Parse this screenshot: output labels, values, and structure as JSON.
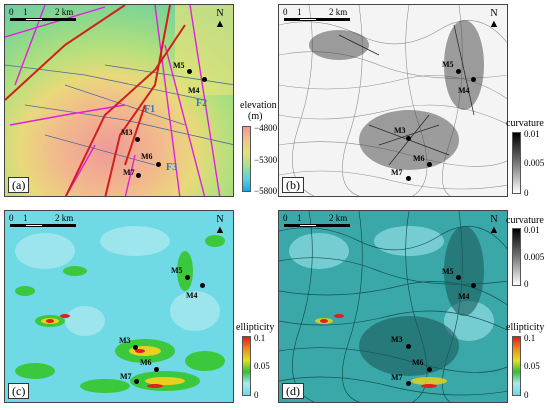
{
  "panels": {
    "a": {
      "label": "(a)"
    },
    "b": {
      "label": "(b)"
    },
    "c": {
      "label": "(c)"
    },
    "d": {
      "label": "(d)"
    }
  },
  "scale": {
    "t0": "0",
    "t1": "1",
    "t2": "2 km"
  },
  "north": "N",
  "wells": {
    "M3": "M3",
    "M4": "M4",
    "M5": "M5",
    "M6": "M6",
    "M7": "M7"
  },
  "faults": {
    "F1": "F1",
    "F2": "F2",
    "F3": "F3"
  },
  "colorbars": {
    "elevation": {
      "title": "elevation",
      "unit": "(m)",
      "ticks": [
        "−4800",
        "−5300",
        "−5800"
      ]
    },
    "curvature_b": {
      "title": "curvature",
      "ticks": [
        "0.01",
        "0.005",
        "0"
      ]
    },
    "ellipticity_c": {
      "title": "ellipticity",
      "ticks": [
        "0.1",
        "0.05",
        "0"
      ]
    },
    "curvature_d": {
      "title": "curvature",
      "ticks": [
        "0.01",
        "0.005",
        "0"
      ]
    },
    "ellipticity_d": {
      "title": "ellipticity",
      "ticks": [
        "0.1",
        "0.05",
        "0"
      ]
    }
  },
  "colors": {
    "fault_red": "#d0201a",
    "fault_magenta": "#e020e0",
    "fault_blue": "#4a6aa0"
  }
}
